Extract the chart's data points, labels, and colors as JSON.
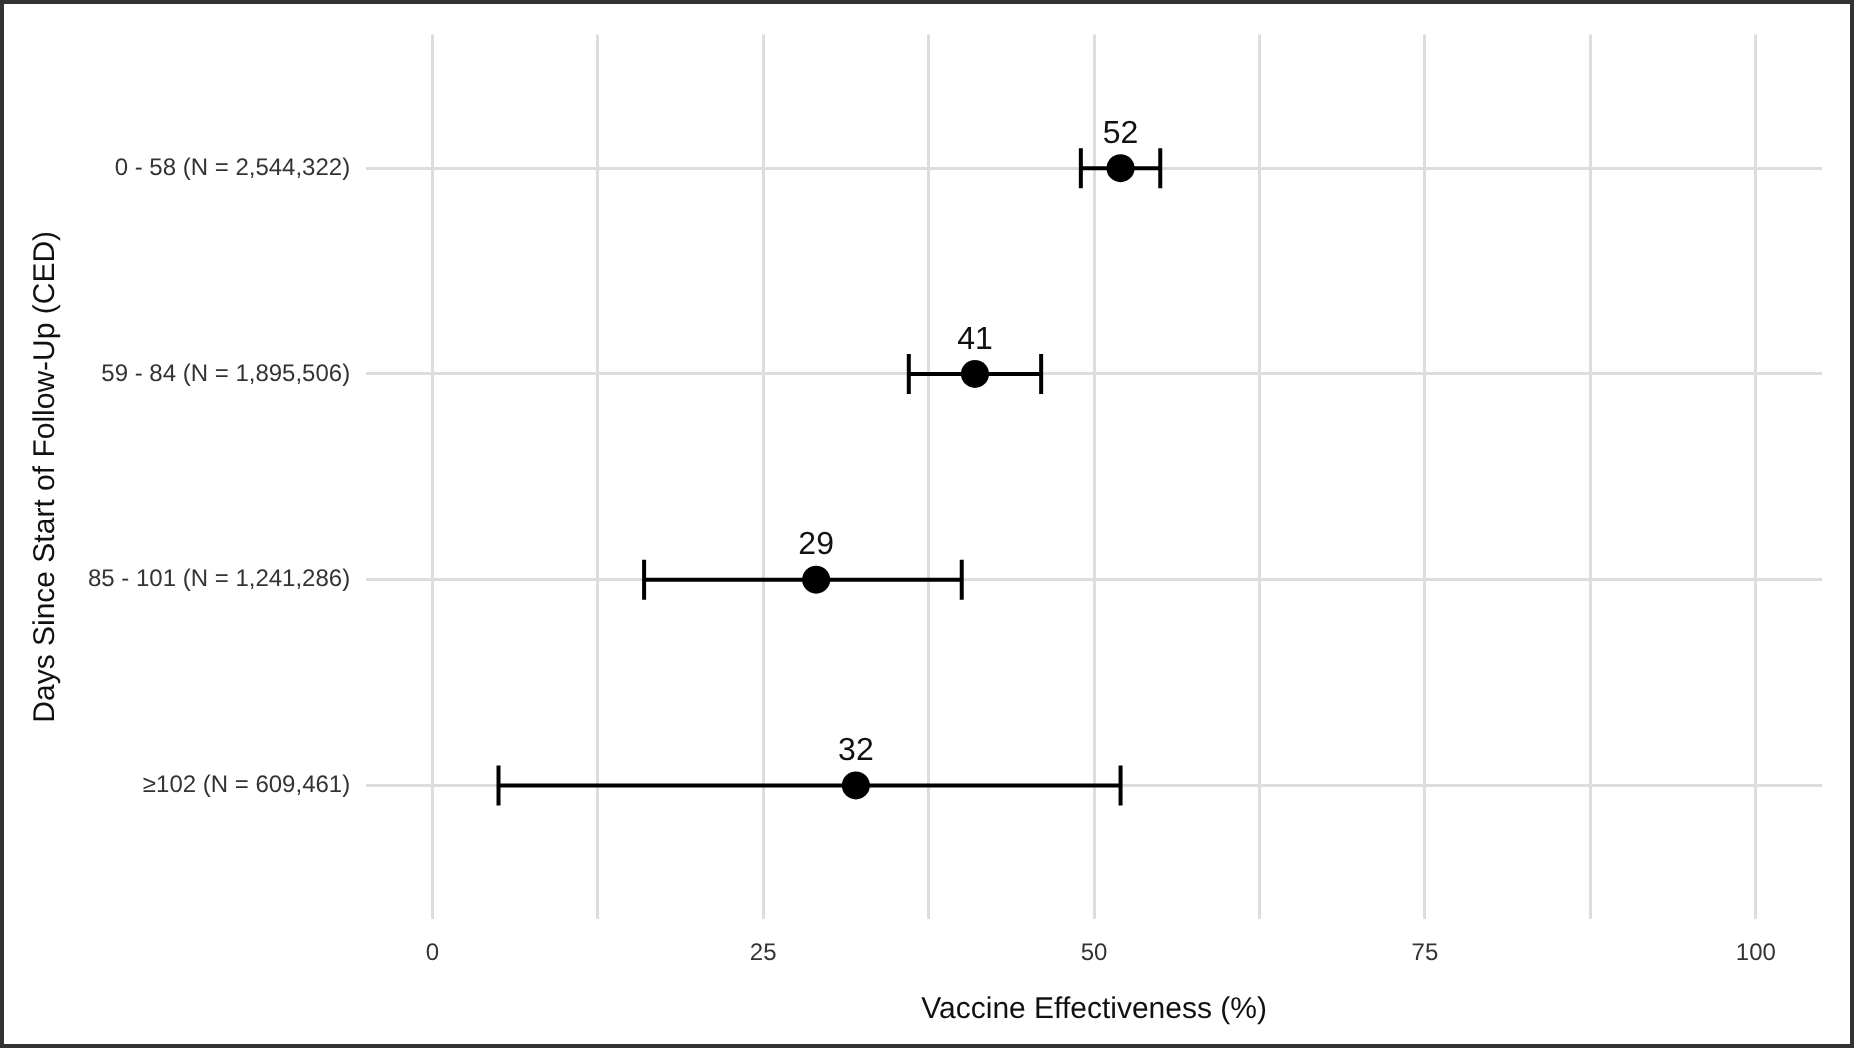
{
  "chart_data": {
    "type": "scatter",
    "orientation": "horizontal",
    "categories": [
      "0 - 58 (N = 2,544,322)",
      "59 - 84 (N = 1,895,506)",
      "85 - 101 (N = 1,241,286)",
      "≥102 (N = 609,461)"
    ],
    "values": [
      52,
      41,
      29,
      32
    ],
    "errors": [
      [
        49,
        55
      ],
      [
        36,
        46
      ],
      [
        16,
        40
      ],
      [
        5,
        52
      ]
    ],
    "color": "#000000",
    "marker": "circle",
    "data_labels": true,
    "xlabel": "Vaccine Effectiveness (%)",
    "ylabel": "Days Since Start of Follow-Up (CED)",
    "xlim": [
      -5,
      105
    ],
    "xticks": [
      0,
      {
        "value": 12.5,
        "label": null
      },
      25,
      {
        "value": 37.5,
        "label": null
      },
      50,
      {
        "value": 62.5,
        "label": null
      },
      75,
      {
        "value": 87.5,
        "label": null
      },
      100
    ],
    "grid": true,
    "legend": false
  }
}
